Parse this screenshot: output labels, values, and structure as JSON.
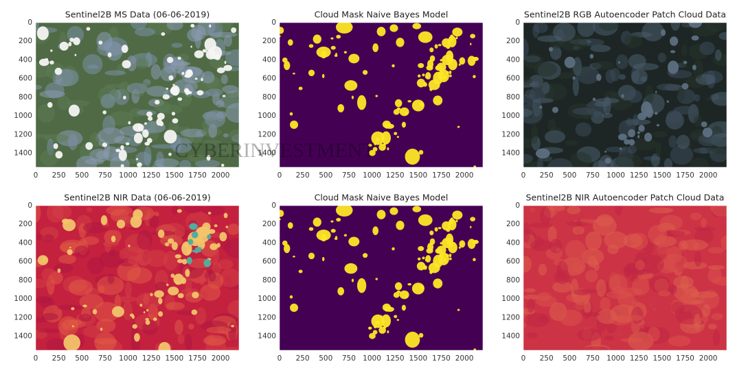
{
  "chart_data": [
    {
      "type": "image",
      "title": "Sentinel2B  MS Data (06-06-2019)",
      "xlim": [
        0,
        2200
      ],
      "ylim": [
        1550,
        0
      ],
      "xticks": [
        0,
        250,
        500,
        750,
        1000,
        1250,
        1500,
        1750,
        2000
      ],
      "yticks": [
        0,
        200,
        400,
        600,
        800,
        1000,
        1200,
        1400
      ]
    },
    {
      "type": "image",
      "title": "Cloud Mask Naive Bayes Model",
      "xlim": [
        0,
        2200
      ],
      "ylim": [
        1550,
        0
      ],
      "xticks": [
        0,
        250,
        500,
        750,
        1000,
        1250,
        1500,
        1750,
        2000
      ],
      "yticks": [
        0,
        200,
        400,
        600,
        800,
        1000,
        1200,
        1400
      ]
    },
    {
      "type": "image",
      "title": "Sentinel2B RGB  Autoencoder Patch Cloud Data",
      "xlim": [
        0,
        2200
      ],
      "ylim": [
        1550,
        0
      ],
      "xticks": [
        0,
        250,
        500,
        750,
        1000,
        1250,
        1500,
        1750,
        2000
      ],
      "yticks": [
        0,
        200,
        400,
        600,
        800,
        1000,
        1200,
        1400
      ]
    },
    {
      "type": "image",
      "title": "Sentinel2B  NIR Data (06-06-2019)",
      "xlim": [
        0,
        2200
      ],
      "ylim": [
        1550,
        0
      ],
      "xticks": [
        0,
        250,
        500,
        750,
        1000,
        1250,
        1500,
        1750,
        2000
      ],
      "yticks": [
        0,
        200,
        400,
        600,
        800,
        1000,
        1200,
        1400
      ]
    },
    {
      "type": "image",
      "title": "Cloud Mask Naive Bayes Model",
      "xlim": [
        0,
        2200
      ],
      "ylim": [
        1550,
        0
      ],
      "xticks": [
        0,
        250,
        500,
        750,
        1000,
        1250,
        1500,
        1750,
        2000
      ],
      "yticks": [
        0,
        200,
        400,
        600,
        800,
        1000,
        1200,
        1400
      ]
    },
    {
      "type": "image",
      "title": "Sentinel2B NIR Autoencoder Patch Cloud Data",
      "xlim": [
        0,
        2200
      ],
      "ylim": [
        1550,
        0
      ],
      "xticks": [
        0,
        250,
        500,
        750,
        1000,
        1250,
        1500,
        1750,
        2000
      ],
      "yticks": [
        0,
        200,
        400,
        600,
        800,
        1000,
        1200,
        1400
      ]
    }
  ],
  "watermark": "CYBERINVESTMENT"
}
